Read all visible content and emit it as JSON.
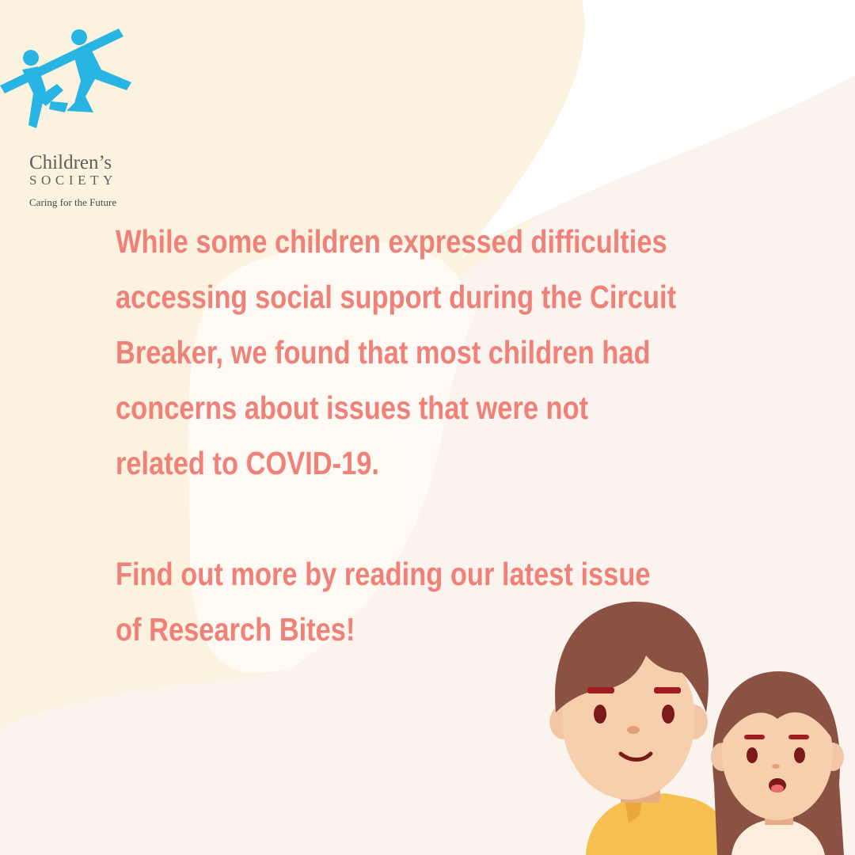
{
  "logo": {
    "name": "Children’s",
    "subname": "SOCIETY",
    "tagline": "Caring for the Future",
    "color": "#29b5e3"
  },
  "message": {
    "paragraph1": [
      "While some children expressed difficulties",
      "accessing social support during the Circuit",
      "Breaker, we found that most children had",
      "concerns about issues that were not",
      "related to COVID-19."
    ],
    "paragraph2": [
      "Find out more by reading our latest issue",
      "of Research Bites!"
    ]
  },
  "colors": {
    "text": "#ef8179",
    "background": "#fbf3ee",
    "blob": "#fbf2df"
  }
}
